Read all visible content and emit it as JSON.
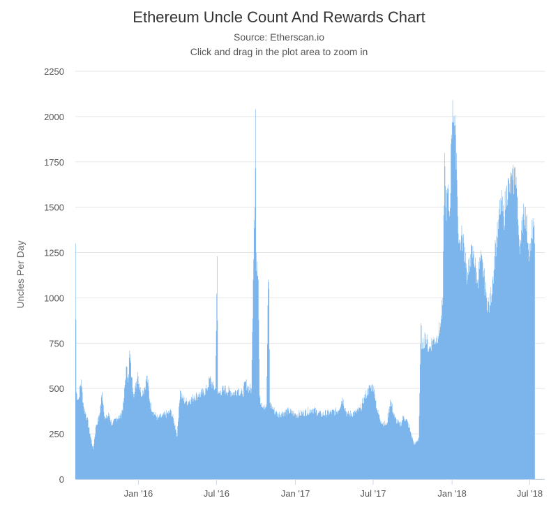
{
  "chart_data": {
    "type": "area",
    "title": "Ethereum Uncle Count And Rewards Chart",
    "subtitle": "Source: Etherscan.io",
    "hint": "Click and drag in the plot area to zoom in",
    "ylabel": "Uncles Per Day",
    "xlabel": "",
    "ylim": [
      0,
      2250
    ],
    "yticks": [
      0,
      250,
      500,
      750,
      1000,
      1250,
      1500,
      1750,
      2000,
      2250
    ],
    "xlim": [
      "2015-08-07",
      "2018-08-05"
    ],
    "xticks": [
      {
        "date": "2016-01-01",
        "label": "Jan '16"
      },
      {
        "date": "2016-07-01",
        "label": "Jul '16"
      },
      {
        "date": "2017-01-01",
        "label": "Jan '17"
      },
      {
        "date": "2017-07-01",
        "label": "Jul '17"
      },
      {
        "date": "2018-01-01",
        "label": "Jan '18"
      },
      {
        "date": "2018-07-01",
        "label": "Jul '18"
      }
    ],
    "color": "#7cb5ec",
    "grid": true,
    "legend": "none",
    "series": [
      {
        "points": [
          [
            "2015-08-07",
            1300
          ],
          [
            "2015-08-09",
            480
          ],
          [
            "2015-08-14",
            440
          ],
          [
            "2015-08-20",
            550
          ],
          [
            "2015-08-26",
            400
          ],
          [
            "2015-09-03",
            340
          ],
          [
            "2015-09-10",
            250
          ],
          [
            "2015-09-17",
            165
          ],
          [
            "2015-09-24",
            300
          ],
          [
            "2015-10-01",
            345
          ],
          [
            "2015-10-08",
            480
          ],
          [
            "2015-10-15",
            330
          ],
          [
            "2015-10-24",
            360
          ],
          [
            "2015-11-01",
            300
          ],
          [
            "2015-11-10",
            340
          ],
          [
            "2015-11-20",
            350
          ],
          [
            "2015-11-27",
            420
          ],
          [
            "2015-12-03",
            620
          ],
          [
            "2015-12-08",
            560
          ],
          [
            "2015-12-11",
            710
          ],
          [
            "2015-12-16",
            560
          ],
          [
            "2015-12-22",
            470
          ],
          [
            "2015-12-30",
            590
          ],
          [
            "2016-01-06",
            480
          ],
          [
            "2016-01-14",
            500
          ],
          [
            "2016-01-21",
            570
          ],
          [
            "2016-01-28",
            420
          ],
          [
            "2016-02-05",
            370
          ],
          [
            "2016-02-15",
            340
          ],
          [
            "2016-02-25",
            350
          ],
          [
            "2016-03-07",
            365
          ],
          [
            "2016-03-17",
            375
          ],
          [
            "2016-03-26",
            300
          ],
          [
            "2016-03-31",
            240
          ],
          [
            "2016-04-04",
            400
          ],
          [
            "2016-04-07",
            490
          ],
          [
            "2016-04-12",
            450
          ],
          [
            "2016-04-20",
            430
          ],
          [
            "2016-04-30",
            440
          ],
          [
            "2016-05-10",
            460
          ],
          [
            "2016-05-20",
            470
          ],
          [
            "2016-05-30",
            480
          ],
          [
            "2016-06-08",
            500
          ],
          [
            "2016-06-15",
            560
          ],
          [
            "2016-06-22",
            520
          ],
          [
            "2016-06-28",
            500
          ],
          [
            "2016-07-02",
            1230
          ],
          [
            "2016-07-04",
            470
          ],
          [
            "2016-07-10",
            490
          ],
          [
            "2016-07-20",
            500
          ],
          [
            "2016-07-30",
            490
          ],
          [
            "2016-08-10",
            480
          ],
          [
            "2016-08-20",
            500
          ],
          [
            "2016-08-30",
            470
          ],
          [
            "2016-09-06",
            540
          ],
          [
            "2016-09-12",
            510
          ],
          [
            "2016-09-20",
            500
          ],
          [
            "2016-09-24",
            1100
          ],
          [
            "2016-09-26",
            1430
          ],
          [
            "2016-09-28",
            1500
          ],
          [
            "2016-09-30",
            2040
          ],
          [
            "2016-10-01",
            1250
          ],
          [
            "2016-10-03",
            1200
          ],
          [
            "2016-10-06",
            1100
          ],
          [
            "2016-10-09",
            450
          ],
          [
            "2016-10-14",
            420
          ],
          [
            "2016-10-20",
            410
          ],
          [
            "2016-10-25",
            400
          ],
          [
            "2016-10-29",
            1100
          ],
          [
            "2016-10-31",
            1050
          ],
          [
            "2016-11-02",
            420
          ],
          [
            "2016-11-10",
            390
          ],
          [
            "2016-11-20",
            360
          ],
          [
            "2016-12-01",
            370
          ],
          [
            "2016-12-15",
            380
          ],
          [
            "2017-01-01",
            360
          ],
          [
            "2017-01-20",
            370
          ],
          [
            "2017-02-10",
            390
          ],
          [
            "2017-03-01",
            360
          ],
          [
            "2017-03-20",
            370
          ],
          [
            "2017-04-10",
            380
          ],
          [
            "2017-04-20",
            450
          ],
          [
            "2017-05-01",
            360
          ],
          [
            "2017-05-20",
            370
          ],
          [
            "2017-06-01",
            390
          ],
          [
            "2017-06-10",
            450
          ],
          [
            "2017-06-20",
            500
          ],
          [
            "2017-06-30",
            520
          ],
          [
            "2017-07-05",
            470
          ],
          [
            "2017-07-10",
            380
          ],
          [
            "2017-07-20",
            320
          ],
          [
            "2017-08-01",
            300
          ],
          [
            "2017-08-10",
            440
          ],
          [
            "2017-08-20",
            340
          ],
          [
            "2017-09-01",
            300
          ],
          [
            "2017-09-10",
            350
          ],
          [
            "2017-09-20",
            310
          ],
          [
            "2017-10-01",
            220
          ],
          [
            "2017-10-05",
            190
          ],
          [
            "2017-10-15",
            230
          ],
          [
            "2017-10-20",
            860
          ],
          [
            "2017-10-23",
            720
          ],
          [
            "2017-10-30",
            800
          ],
          [
            "2017-11-08",
            720
          ],
          [
            "2017-11-15",
            770
          ],
          [
            "2017-11-25",
            780
          ],
          [
            "2017-12-05",
            860
          ],
          [
            "2017-12-10",
            1000
          ],
          [
            "2017-12-14",
            1800
          ],
          [
            "2017-12-17",
            1500
          ],
          [
            "2017-12-22",
            1600
          ],
          [
            "2017-12-26",
            1450
          ],
          [
            "2017-12-30",
            1900
          ],
          [
            "2018-01-02",
            2090
          ],
          [
            "2018-01-05",
            2000
          ],
          [
            "2018-01-08",
            1900
          ],
          [
            "2018-01-11",
            1800
          ],
          [
            "2018-01-14",
            1450
          ],
          [
            "2018-01-18",
            1300
          ],
          [
            "2018-01-24",
            1350
          ],
          [
            "2018-02-01",
            1250
          ],
          [
            "2018-02-05",
            1100
          ],
          [
            "2018-02-12",
            1240
          ],
          [
            "2018-02-20",
            1260
          ],
          [
            "2018-02-28",
            1100
          ],
          [
            "2018-03-08",
            1220
          ],
          [
            "2018-03-15",
            1150
          ],
          [
            "2018-03-22",
            1000
          ],
          [
            "2018-03-29",
            960
          ],
          [
            "2018-04-05",
            1100
          ],
          [
            "2018-04-12",
            1300
          ],
          [
            "2018-04-18",
            1380
          ],
          [
            "2018-04-24",
            1550
          ],
          [
            "2018-05-01",
            1450
          ],
          [
            "2018-05-08",
            1620
          ],
          [
            "2018-05-15",
            1630
          ],
          [
            "2018-05-22",
            1650
          ],
          [
            "2018-05-29",
            1720
          ],
          [
            "2018-06-04",
            1400
          ],
          [
            "2018-06-10",
            1300
          ],
          [
            "2018-06-16",
            1520
          ],
          [
            "2018-06-22",
            1450
          ],
          [
            "2018-06-28",
            1300
          ],
          [
            "2018-07-03",
            1260
          ],
          [
            "2018-07-08",
            1440
          ],
          [
            "2018-07-12",
            1300
          ]
        ]
      }
    ]
  }
}
